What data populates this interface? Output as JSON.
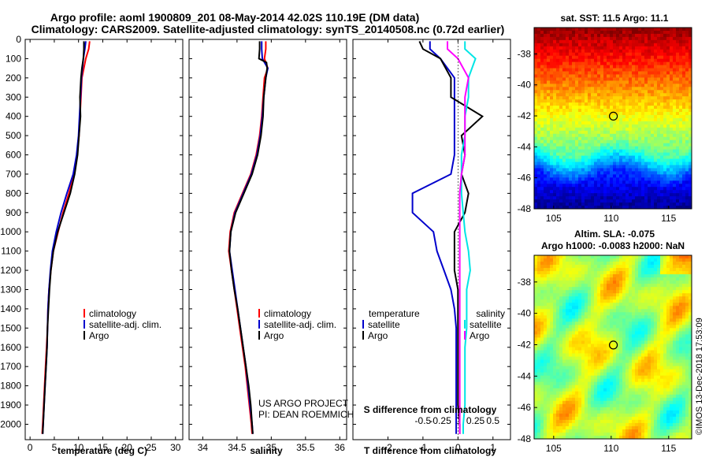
{
  "title": {
    "line1": "Argo profile: aoml 1900809_201 08-May-2014 42.02S 110.19E (DM data)",
    "line2": "Climatology: CARS2009. Satellite-adjusted climatology: synTS_20140508.nc (0.72d earlier)"
  },
  "colors": {
    "climatology": "#ff0000",
    "satellite": "#0000cc",
    "argo": "#000000",
    "sat_salinity": "#00e5e5",
    "argo_salinity": "#ff00ff"
  },
  "chart_data": [
    {
      "type": "line",
      "id": "temperature",
      "xlabel": "temperature (deg C)",
      "ylabel": "",
      "xlim": [
        -1,
        31.5
      ],
      "ylim": [
        2080,
        0
      ],
      "xticks": [
        0,
        5,
        10,
        15,
        20,
        25,
        30
      ],
      "yticks": [
        0,
        100,
        200,
        300,
        400,
        500,
        600,
        700,
        800,
        900,
        1000,
        1100,
        1200,
        1300,
        1400,
        1500,
        1600,
        1700,
        1800,
        1900,
        2000
      ],
      "legend": {
        "position": "center",
        "entries": [
          "climatology",
          "satellite-adj. clim.",
          "Argo"
        ]
      },
      "series": [
        {
          "name": "climatology",
          "color": "#ff0000",
          "y": [
            10,
            50,
            100,
            200,
            300,
            400,
            500,
            600,
            700,
            800,
            900,
            1000,
            1100,
            1200,
            1300,
            1400,
            1500,
            1600,
            1700,
            1800,
            1900,
            2000,
            2050
          ],
          "x": [
            12.3,
            12.1,
            11.5,
            10.7,
            10.5,
            10.3,
            10.1,
            9.7,
            9.1,
            8.0,
            6.8,
            5.8,
            4.8,
            4.3,
            3.9,
            3.7,
            3.6,
            3.4,
            3.2,
            3.0,
            2.8,
            2.6,
            2.5
          ]
        },
        {
          "name": "satellite-adj. clim.",
          "color": "#0000cc",
          "y": [
            10,
            50,
            100,
            200,
            300,
            400,
            500,
            600,
            700,
            800,
            900,
            1000,
            1100,
            1200,
            1300,
            1400,
            1500,
            1600,
            1700,
            1800,
            1900,
            2000,
            2050
          ],
          "x": [
            11.5,
            11.3,
            11.0,
            10.6,
            10.4,
            10.2,
            10.0,
            9.6,
            8.9,
            7.6,
            6.4,
            5.4,
            4.6,
            4.2,
            3.9,
            3.7,
            3.6,
            3.5,
            3.3,
            3.1,
            2.9,
            2.7,
            2.6
          ]
        },
        {
          "name": "Argo",
          "color": "#000000",
          "y": [
            10,
            50,
            100,
            150,
            200,
            300,
            400,
            500,
            600,
            700,
            800,
            900,
            1000,
            1100,
            1200,
            1300,
            1400,
            1500,
            1600,
            1700,
            1800,
            1900,
            2000,
            2050
          ],
          "x": [
            11.1,
            11.1,
            11.0,
            10.7,
            10.5,
            10.3,
            10.4,
            10.1,
            9.8,
            9.2,
            8.3,
            7.0,
            5.7,
            4.8,
            4.3,
            4.0,
            3.8,
            3.6,
            3.5,
            3.3,
            3.1,
            2.9,
            2.7,
            2.6
          ]
        }
      ]
    },
    {
      "type": "line",
      "id": "salinity",
      "xlabel": "salinity",
      "xlim": [
        33.8,
        36.1
      ],
      "ylim": [
        2080,
        0
      ],
      "xticks": [
        34,
        34.5,
        35,
        35.5,
        36
      ],
      "legend": {
        "position": "center",
        "entries": [
          "climatology",
          "satellite-adj. clim.",
          "Argo"
        ]
      },
      "series": [
        {
          "name": "climatology",
          "color": "#ff0000",
          "y": [
            10,
            50,
            100,
            150,
            200,
            300,
            400,
            500,
            600,
            700,
            800,
            900,
            1000,
            1100,
            1200,
            1300,
            1400,
            1500,
            1600,
            1700,
            1800,
            1900,
            2000,
            2050
          ],
          "x": [
            34.92,
            34.92,
            34.9,
            34.95,
            34.9,
            34.88,
            34.86,
            34.83,
            34.78,
            34.7,
            34.58,
            34.46,
            34.4,
            34.38,
            34.42,
            34.46,
            34.5,
            34.54,
            34.58,
            34.62,
            34.65,
            34.68,
            34.71,
            34.72
          ]
        },
        {
          "name": "satellite-adj. clim.",
          "color": "#0000cc",
          "y": [
            10,
            50,
            100,
            150,
            200,
            300,
            400,
            500,
            600,
            700,
            800,
            900,
            1000,
            1100,
            1200,
            1300,
            1400,
            1500,
            1600,
            1700,
            1800,
            1900,
            2000,
            2050
          ],
          "x": [
            34.86,
            34.86,
            34.87,
            34.95,
            34.92,
            34.89,
            34.87,
            34.84,
            34.79,
            34.71,
            34.59,
            34.47,
            34.41,
            34.39,
            34.43,
            34.47,
            34.51,
            34.55,
            34.59,
            34.63,
            34.66,
            34.69,
            34.72,
            34.73
          ]
        },
        {
          "name": "Argo",
          "color": "#000000",
          "y": [
            10,
            50,
            100,
            120,
            150,
            200,
            300,
            400,
            500,
            600,
            700,
            800,
            900,
            1000,
            1100,
            1200,
            1300,
            1400,
            1500,
            1600,
            1700,
            1800,
            1900,
            2000,
            2050
          ],
          "x": [
            34.83,
            34.83,
            34.82,
            34.93,
            34.94,
            34.92,
            34.89,
            34.88,
            34.85,
            34.8,
            34.72,
            34.6,
            34.48,
            34.41,
            34.39,
            34.42,
            34.46,
            34.51,
            34.55,
            34.59,
            34.63,
            34.67,
            34.7,
            34.72,
            34.73
          ]
        }
      ]
    },
    {
      "type": "line",
      "id": "difference",
      "xlabel": "T difference from climatology",
      "secondary_xlabel": "S difference from climatology",
      "xlim": [
        -3,
        1.5
      ],
      "ylim": [
        2080,
        0
      ],
      "xticks": [
        -2,
        -1,
        0,
        1
      ],
      "secondary_xticks": [
        "-0.5",
        "-0.25",
        "0",
        "0.25",
        "0.5"
      ],
      "legend": {
        "position": "bottom",
        "entries": [
          "temperature",
          "satellite",
          "Argo",
          "salinity",
          "satellite",
          "Argo"
        ]
      },
      "series": [
        {
          "name": "satellite",
          "group": "temperature",
          "color": "#0000cc",
          "y": [
            10,
            50,
            100,
            200,
            300,
            400,
            500,
            600,
            700,
            800,
            900,
            1000,
            1100,
            1200,
            1300,
            1400,
            1500,
            1600,
            1700,
            1800,
            1900,
            2000,
            2050
          ],
          "x": [
            -0.8,
            -0.8,
            -0.5,
            -0.1,
            -0.1,
            -0.1,
            -0.1,
            -0.1,
            -0.2,
            -1.3,
            -1.3,
            -0.7,
            -0.6,
            -0.4,
            -0.2,
            -0.1,
            -0.05,
            -0.05,
            -0.05,
            -0.05,
            -0.05,
            -0.05,
            -0.05
          ]
        },
        {
          "name": "Argo",
          "group": "temperature",
          "color": "#000000",
          "y": [
            10,
            50,
            100,
            200,
            300,
            400,
            500,
            600,
            700,
            800,
            900,
            1000,
            1100,
            1200,
            1300,
            1400,
            1500,
            1600,
            1700,
            1800,
            1900,
            2000,
            2050
          ],
          "x": [
            -1.1,
            -1.0,
            -0.5,
            -0.2,
            -0.2,
            0.7,
            0.1,
            0.2,
            0.1,
            0.3,
            0.2,
            -0.1,
            -0.1,
            -0.1,
            0.0,
            0.0,
            0.0,
            0.0,
            0.0,
            0.0,
            0.0,
            0.05,
            0.05
          ]
        },
        {
          "name": "satellite",
          "group": "salinity",
          "color": "#00e5e5",
          "y": [
            10,
            50,
            100,
            200,
            300,
            400,
            500,
            600,
            700,
            800,
            900,
            1000,
            1100,
            1200,
            1300,
            1400,
            1500,
            1600,
            1700,
            1800,
            1900,
            2000,
            2050
          ],
          "x": [
            0.2,
            0.2,
            0.5,
            0.3,
            0.3,
            0.2,
            0.2,
            0.1,
            0.1,
            0.1,
            0.15,
            0.2,
            0.3,
            0.35,
            0.25,
            0.25,
            0.25,
            0.2,
            0.2,
            0.2,
            0.2,
            0.15,
            0.15
          ]
        },
        {
          "name": "Argo",
          "group": "salinity",
          "color": "#ff00ff",
          "y": [
            10,
            50,
            100,
            200,
            300,
            400,
            500,
            600,
            700,
            800,
            900,
            1000,
            1100,
            1200,
            1300,
            1400,
            1500,
            1600,
            1700,
            1800,
            1900,
            2000,
            2050
          ],
          "x": [
            -0.3,
            -0.3,
            0.0,
            0.3,
            0.2,
            0.2,
            0.2,
            0.2,
            0.1,
            0.05,
            0.05,
            0.05,
            0.05,
            0.05,
            0.05,
            0.05,
            0.05,
            0.05,
            0.05,
            0.05,
            0.05,
            0.05,
            0.05
          ]
        }
      ]
    },
    {
      "type": "heatmap",
      "id": "sst-map",
      "title": "sat. SST: 11.5 Argo: 11.1",
      "xlim": [
        103.3,
        117
      ],
      "ylim": [
        -48,
        -36.3
      ],
      "xticks": [
        105,
        110,
        115
      ],
      "yticks": [
        -38,
        -40,
        -42,
        -44,
        -46,
        -48
      ],
      "marker": {
        "lon": 110.19,
        "lat": -42.02
      }
    },
    {
      "type": "heatmap",
      "id": "sla-map",
      "title": "Altim. SLA: -0.075",
      "subtitle": "Argo h1000: -0.0083 h2000: NaN",
      "xlim": [
        103.3,
        117
      ],
      "ylim": [
        -48,
        -36.3
      ],
      "xticks": [
        105,
        110,
        115
      ],
      "yticks": [
        -38,
        -40,
        -42,
        -44,
        -46,
        -48
      ],
      "marker": {
        "lon": 110.19,
        "lat": -42.02
      }
    }
  ],
  "labels": {
    "leg_climatology": "climatology",
    "leg_satellite_adj": "satellite-adj. clim.",
    "leg_argo": "Argo",
    "leg_temperature": "temperature",
    "leg_satellite": "satellite",
    "leg_salinity": "salinity",
    "credit1": "US ARGO PROJECT",
    "credit2": "PI: DEAN ROEMMICH",
    "watermark": "©IMOS 13-Dec-2018 17:53:09"
  }
}
